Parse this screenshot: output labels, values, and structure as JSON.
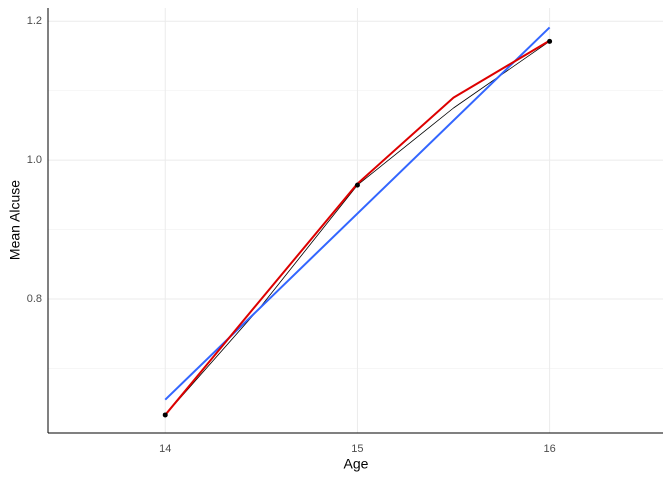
{
  "chart_data": {
    "type": "line",
    "x_label": "Age",
    "y_label": "Mean Alcuse",
    "xlim": [
      13.39,
      16.59
    ],
    "ylim": [
      0.607,
      1.219
    ],
    "xticks": [
      14,
      15,
      16
    ],
    "yticks": [
      0.8,
      {
        "value": 1,
        "label": "1.0"
      },
      1.2
    ],
    "y_minor_ticks": [
      0.7,
      0.9,
      1.1
    ],
    "grid": true,
    "series": [
      {
        "style": "line",
        "color": "#000000",
        "width": 0.8,
        "x": [
          14,
          14.5,
          15,
          15.5,
          16
        ],
        "values": [
          0.633,
          0.79,
          0.964,
          1.075,
          1.171
        ]
      },
      {
        "style": "line",
        "color": "#3366ff",
        "width": 2,
        "x": [
          14,
          16
        ],
        "values": [
          0.655,
          1.191
        ]
      },
      {
        "style": "line",
        "color": "#dd0000",
        "width": 2,
        "x": [
          14,
          14.5,
          15,
          15.5,
          16
        ],
        "values": [
          0.633,
          0.8,
          0.966,
          1.09,
          1.172
        ]
      },
      {
        "style": "points",
        "color": "#000000",
        "x": [
          14,
          15,
          16
        ],
        "values": [
          0.633,
          0.964,
          1.171
        ]
      }
    ]
  }
}
